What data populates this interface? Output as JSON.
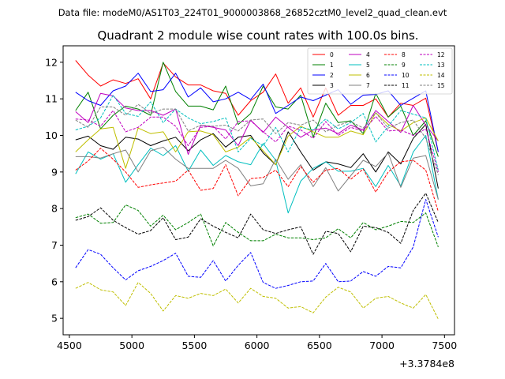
{
  "chart_data": {
    "type": "line",
    "suptitle": "Data file: modeM0/AS1T03_224T01_9000003868_26852cztM0_level2_quad_clean.evt",
    "title": "Quadrant 2 module wise count rates with 100.0s bins.",
    "xlabel": "",
    "ylabel": "",
    "x_offset_label": "+3.3784e8",
    "xlim": [
      4450,
      7580
    ],
    "ylim": [
      4.55,
      12.45
    ],
    "x_ticks": [
      4500,
      5000,
      5500,
      6000,
      6500,
      7000,
      7500
    ],
    "x_tick_labels": [
      "4500",
      "5000",
      "5500",
      "6000",
      "6500",
      "7000",
      "7500"
    ],
    "y_ticks": [
      5,
      6,
      7,
      8,
      9,
      10,
      11,
      12
    ],
    "y_tick_labels": [
      "5",
      "6",
      "7",
      "8",
      "9",
      "10",
      "11",
      "12"
    ],
    "grid": false,
    "legend_position": "top-right",
    "legend_columns": 4,
    "x": [
      4550,
      4650,
      4750,
      4850,
      4950,
      5050,
      5150,
      5250,
      5350,
      5450,
      5550,
      5650,
      5750,
      5850,
      5950,
      6050,
      6150,
      6250,
      6350,
      6450,
      6550,
      6650,
      6750,
      6850,
      6950,
      7050,
      7150,
      7250,
      7350,
      7450
    ],
    "series": [
      {
        "name": "0",
        "color": "#ff0000",
        "dash": "solid",
        "values": [
          12.05,
          11.65,
          11.35,
          11.52,
          11.42,
          11.55,
          11.0,
          11.98,
          11.6,
          11.38,
          11.38,
          11.22,
          11.15,
          10.55,
          10.95,
          11.18,
          11.68,
          10.88,
          11.3,
          10.5,
          11.3,
          10.55,
          10.82,
          10.82,
          11.0,
          10.5,
          10.88,
          10.82,
          11.02,
          9.55
        ]
      },
      {
        "name": "1",
        "color": "#008000",
        "dash": "solid",
        "values": [
          10.68,
          11.18,
          10.18,
          10.55,
          10.8,
          10.72,
          10.55,
          12.0,
          11.2,
          10.8,
          10.8,
          10.7,
          11.35,
          10.3,
          10.6,
          11.35,
          10.78,
          10.72,
          11.1,
          9.95,
          10.88,
          10.35,
          10.4,
          10.05,
          11.15,
          10.5,
          10.8,
          10.0,
          10.4,
          9.42
        ]
      },
      {
        "name": "2",
        "color": "#0000ff",
        "dash": "solid",
        "values": [
          11.18,
          10.95,
          10.82,
          11.22,
          11.35,
          11.7,
          11.2,
          11.25,
          11.7,
          11.05,
          11.3,
          10.92,
          11.0,
          11.18,
          10.98,
          11.4,
          10.6,
          10.82,
          11.05,
          10.95,
          11.1,
          11.25,
          10.85,
          11.1,
          11.12,
          11.22,
          10.82,
          11.02,
          11.22,
          9.55
        ]
      },
      {
        "name": "3",
        "color": "#000000",
        "dash": "solid",
        "values": [
          9.88,
          9.98,
          9.72,
          9.62,
          9.95,
          9.9,
          9.72,
          9.85,
          9.95,
          9.58,
          9.88,
          10.05,
          9.68,
          9.95,
          10.0,
          9.52,
          9.2,
          10.1,
          9.55,
          9.05,
          9.28,
          9.22,
          9.12,
          9.5,
          9.0,
          9.55,
          9.22,
          9.92,
          10.3,
          8.55
        ]
      },
      {
        "name": "4",
        "color": "#bf00bf",
        "dash": "solid",
        "values": [
          10.65,
          10.35,
          11.15,
          11.08,
          10.75,
          10.68,
          10.68,
          10.55,
          10.72,
          9.48,
          10.28,
          10.22,
          10.15,
          9.72,
          10.42,
          10.08,
          10.5,
          10.22,
          9.95,
          10.15,
          10.2,
          10.05,
          10.28,
          10.15,
          10.68,
          10.38,
          10.08,
          10.82,
          10.28,
          9.85
        ]
      },
      {
        "name": "5",
        "color": "#00bfbf",
        "dash": "solid",
        "values": [
          8.95,
          9.55,
          9.35,
          9.5,
          8.72,
          9.2,
          9.65,
          9.45,
          9.72,
          9.02,
          9.6,
          9.18,
          9.45,
          9.28,
          9.2,
          9.78,
          9.32,
          7.88,
          8.75,
          9.1,
          9.28,
          9.02,
          9.02,
          9.1,
          8.6,
          9.18,
          8.62,
          9.55,
          10.0,
          8.25
        ]
      },
      {
        "name": "6",
        "color": "#bfbf00",
        "dash": "solid",
        "values": [
          9.55,
          9.88,
          10.18,
          10.22,
          9.1,
          10.2,
          10.05,
          10.1,
          9.55,
          10.1,
          10.12,
          10.02,
          9.55,
          9.68,
          9.95,
          9.58,
          9.2,
          9.98,
          10.25,
          10.1,
          9.95,
          9.95,
          10.12,
          10.02,
          10.62,
          10.3,
          10.12,
          10.35,
          10.48,
          9.85
        ]
      },
      {
        "name": "7",
        "color": "#808080",
        "dash": "solid",
        "values": [
          9.42,
          9.42,
          9.38,
          9.5,
          9.6,
          9.0,
          9.58,
          9.68,
          9.35,
          9.1,
          9.1,
          9.1,
          9.32,
          9.1,
          8.62,
          8.68,
          9.35,
          8.8,
          9.2,
          8.6,
          9.12,
          8.48,
          8.9,
          9.32,
          9.15,
          9.52,
          8.58,
          9.38,
          9.45,
          8.25
        ]
      },
      {
        "name": "8",
        "color": "#ff0000",
        "dash": "dashed",
        "values": [
          9.05,
          9.3,
          9.65,
          9.35,
          9.0,
          8.58,
          8.65,
          8.7,
          8.75,
          9.05,
          8.5,
          8.55,
          9.2,
          8.35,
          8.82,
          8.85,
          9.05,
          8.6,
          9.15,
          8.72,
          9.05,
          9.1,
          8.8,
          9.08,
          8.45,
          9.0,
          9.28,
          9.32,
          9.05,
          7.92
        ]
      },
      {
        "name": "9",
        "color": "#008000",
        "dash": "dashed",
        "values": [
          7.75,
          7.85,
          7.6,
          7.62,
          8.1,
          7.95,
          7.52,
          7.82,
          7.42,
          7.62,
          7.85,
          6.98,
          7.62,
          7.35,
          7.12,
          7.12,
          7.3,
          7.2,
          7.2,
          7.15,
          7.2,
          7.45,
          7.2,
          7.62,
          7.42,
          7.52,
          7.65,
          7.62,
          7.88,
          6.95
        ]
      },
      {
        "name": "10",
        "color": "#0000ff",
        "dash": "dashed",
        "values": [
          6.38,
          6.88,
          6.75,
          6.38,
          6.05,
          6.3,
          6.42,
          6.58,
          6.78,
          6.15,
          6.12,
          6.58,
          6.02,
          6.45,
          6.8,
          5.98,
          5.82,
          5.9,
          6.0,
          6.02,
          6.5,
          6.0,
          6.02,
          6.28,
          6.15,
          6.42,
          6.38,
          6.95,
          8.25,
          7.22
        ]
      },
      {
        "name": "11",
        "color": "#000000",
        "dash": "dashed",
        "values": [
          7.68,
          7.78,
          8.02,
          7.68,
          7.48,
          7.3,
          7.4,
          7.75,
          7.15,
          7.22,
          7.72,
          7.52,
          7.35,
          7.2,
          7.85,
          7.42,
          7.32,
          7.42,
          7.5,
          6.75,
          7.38,
          7.32,
          6.82,
          7.52,
          7.48,
          7.35,
          7.05,
          7.95,
          8.42,
          7.62
        ]
      },
      {
        "name": "12",
        "color": "#bf00bf",
        "dash": "dashed",
        "values": [
          10.45,
          10.42,
          10.25,
          10.68,
          10.1,
          10.22,
          10.5,
          10.5,
          10.25,
          9.72,
          10.22,
          10.25,
          9.9,
          10.38,
          10.4,
          10.1,
          9.82,
          10.25,
          10.15,
          9.92,
          10.38,
          10.0,
          10.22,
          10.12,
          10.52,
          10.12,
          10.15,
          10.0,
          10.18,
          9.0
        ]
      },
      {
        "name": "13",
        "color": "#00bfbf",
        "dash": "dashed",
        "values": [
          10.15,
          10.25,
          10.48,
          11.1,
          10.6,
          10.52,
          10.92,
          10.35,
          10.72,
          10.48,
          10.32,
          10.38,
          10.48,
          9.55,
          9.92,
          9.72,
          10.22,
          9.55,
          10.22,
          10.15,
          10.45,
          10.18,
          10.35,
          10.6,
          9.82,
          10.25,
          10.68,
          10.58,
          10.48,
          9.05
        ]
      },
      {
        "name": "14",
        "color": "#bfbf00",
        "dash": "dashed",
        "values": [
          5.82,
          5.98,
          5.78,
          5.72,
          5.35,
          5.98,
          5.68,
          5.2,
          5.62,
          5.55,
          5.68,
          5.62,
          5.8,
          5.42,
          5.82,
          5.6,
          5.55,
          5.28,
          5.32,
          5.15,
          5.58,
          5.85,
          5.72,
          5.28,
          5.55,
          5.6,
          5.42,
          5.28,
          5.65,
          4.98
        ]
      },
      {
        "name": "15",
        "color": "#808080",
        "dash": "dashed",
        "values": [
          10.42,
          10.22,
          10.78,
          10.78,
          10.55,
          10.85,
          10.6,
          10.72,
          10.72,
          10.12,
          10.28,
          10.25,
          10.28,
          10.12,
          10.42,
          10.45,
          10.05,
          10.35,
          10.28,
          10.42,
          10.1,
          10.28,
          10.38,
          10.2,
          10.62,
          10.2,
          10.35,
          10.42,
          9.92,
          8.92
        ]
      }
    ]
  }
}
